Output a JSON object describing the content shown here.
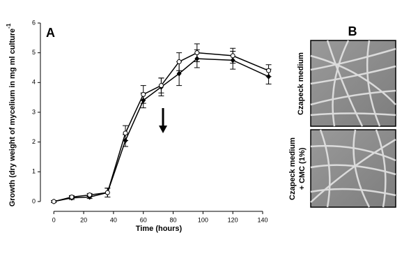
{
  "chart_data": {
    "type": "line",
    "panel_label": "A",
    "xlabel": "Time (hours)",
    "ylabel": "Growth (dry weight of mycelium in mg ml culture",
    "ylabel_sup": "-1",
    "x": [
      0,
      12,
      24,
      36,
      48,
      60,
      72,
      84,
      96,
      120,
      144
    ],
    "xlim": [
      -9,
      147
    ],
    "xticks": [
      0,
      20,
      40,
      60,
      80,
      100,
      120,
      140
    ],
    "ylim": [
      -0.33,
      6
    ],
    "yticks": [
      0,
      1,
      2,
      3,
      4,
      5,
      6
    ],
    "series": [
      {
        "color": "#000000",
        "marker": "diamond",
        "values": [
          0,
          0.12,
          0.15,
          0.3,
          2.05,
          3.4,
          3.85,
          4.3,
          4.8,
          4.75,
          4.2
        ],
        "errors": [
          0.03,
          0.05,
          0.05,
          0.15,
          0.2,
          0.25,
          0.3,
          0.4,
          0.3,
          0.3,
          0.25
        ]
      },
      {
        "color": "#000000",
        "marker": "open-circle",
        "values": [
          0,
          0.15,
          0.22,
          0.3,
          2.3,
          3.6,
          3.9,
          4.7,
          5.0,
          4.9,
          4.4
        ],
        "errors": [
          0.03,
          0.05,
          0.05,
          0.15,
          0.25,
          0.3,
          0.25,
          0.3,
          0.3,
          0.25,
          0.2
        ]
      }
    ]
  },
  "panel_b": {
    "label": "B",
    "captions": [
      [
        "Czapeck medium"
      ],
      [
        "Czapeck medium",
        "+ CMC (1%)"
      ]
    ]
  }
}
